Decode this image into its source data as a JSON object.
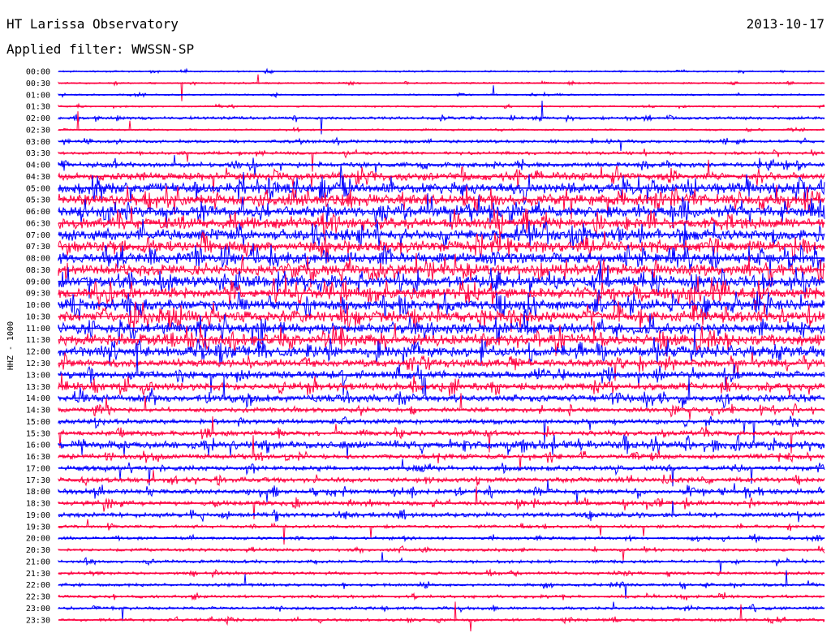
{
  "header": {
    "title": "HT Larissa Observatory",
    "date": "2013-10-17",
    "filter_label": "Applied filter: WWSSN-SP"
  },
  "chart_data": {
    "type": "line",
    "title": "HT Larissa Observatory",
    "subtitle": "Applied filter: WWSSN-SP",
    "date": "2013-10-17",
    "ylabel": "HHZ - 1000",
    "xlabel": "",
    "row_labels": [
      "00:00",
      "00:30",
      "01:00",
      "01:30",
      "02:00",
      "02:30",
      "03:00",
      "03:30",
      "04:00",
      "04:30",
      "05:00",
      "05:30",
      "06:00",
      "06:30",
      "07:00",
      "07:30",
      "08:00",
      "08:30",
      "09:00",
      "09:30",
      "10:00",
      "10:30",
      "11:00",
      "11:30",
      "12:00",
      "12:30",
      "13:00",
      "13:30",
      "14:00",
      "14:30",
      "15:00",
      "15:30",
      "16:00",
      "16:30",
      "17:00",
      "17:30",
      "18:00",
      "18:30",
      "19:00",
      "19:30",
      "20:00",
      "20:30",
      "21:00",
      "21:30",
      "22:00",
      "22:30",
      "23:00",
      "23:30"
    ],
    "row_colors": [
      "#0000ff",
      "#ff0040"
    ],
    "activity_level": [
      1,
      1,
      1,
      1,
      2,
      1,
      2,
      2,
      3,
      4,
      5,
      5,
      5,
      5,
      5,
      5,
      5,
      5,
      5,
      5,
      5,
      5,
      5,
      5,
      5,
      4,
      4,
      4,
      4,
      3,
      3,
      3,
      4,
      3,
      3,
      3,
      3,
      3,
      3,
      2,
      2,
      2,
      2,
      2,
      2,
      2,
      2,
      2
    ],
    "grid": false
  }
}
